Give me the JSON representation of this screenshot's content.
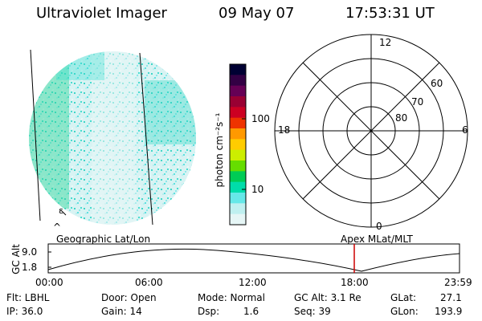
{
  "header": {
    "title": "Ultraviolet Imager",
    "date": "09 May 07",
    "time": "17:53:31 UT"
  },
  "colorbar": {
    "unit_label": "photon cm⁻²s⁻¹",
    "ticks": [
      "100",
      "10"
    ],
    "colors": [
      "#000033",
      "#330044",
      "#660055",
      "#990033",
      "#cc0022",
      "#ee3300",
      "#ff9900",
      "#ffcc00",
      "#ccee00",
      "#66dd00",
      "#00cc55",
      "#00ddaa",
      "#66e8e8",
      "#bff0f0",
      "#e6f6f6"
    ]
  },
  "polar_plot": {
    "mlt_labels": {
      "top": "12",
      "left": "18",
      "right": "6",
      "bottom": "0"
    },
    "lat_labels": [
      "60",
      "70",
      "80"
    ]
  },
  "image_panel": {
    "caption_left": "Geographic Lat/Lon",
    "caption_right": "Apex MLat/MLT",
    "marker": "^",
    "marker_small": "ɛ"
  },
  "timeline": {
    "ylabel": "GC Alt",
    "yticks": [
      "9.0",
      "1.8"
    ],
    "xticks": [
      "00:00",
      "06:00",
      "12:00",
      "18:00",
      "23:59"
    ],
    "current_marker_color": "#cc0000"
  },
  "status": {
    "flt": "Flt: LBHL",
    "ip": "IP: 36.0",
    "door": "Door: Open",
    "gain": "Gain: 14",
    "mode": "Mode: Normal",
    "dsp_label": "Dsp:",
    "dsp_value": "1.6",
    "gcalt": "GC Alt: 3.1 Re",
    "seq": "Seq: 39",
    "glat_label": "GLat:",
    "glat_value": "27.1",
    "glon_label": "GLon:",
    "glon_value": "193.9"
  }
}
